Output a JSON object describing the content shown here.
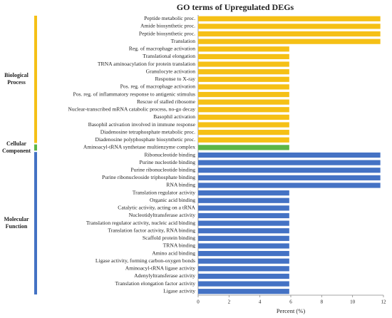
{
  "chart_data": {
    "type": "hbar",
    "title": "GO terms of Upregulated DEGs",
    "x_label": "Percent (%)",
    "xlim": [
      0,
      12
    ],
    "xticks": [
      0,
      2,
      4,
      6,
      8,
      10,
      12
    ],
    "groups": [
      {
        "name": "Biological Process",
        "color": "#f5c016",
        "categories": [
          "Peptide metabolic proc.",
          "Amide biosynthetic proc.",
          "Peptide biosynthetic proc.",
          "Translation",
          "Reg. of macrophage activation",
          "Translational elongation",
          "TRNA aminoacylation for protein translation",
          "Granulocyte activation",
          "Response to X-ray",
          "Pos. reg. of macrophage activation",
          "Pos. reg. of inflammatory response to antigenic stimulus",
          "Rescue of stalled ribosome",
          "Nuclear-transcribed mRNA catabolic process, no-go decay",
          "Basophil activation",
          "Basophil activation involved in immune response",
          "Diadenosine tetraphosphate metabolic proc.",
          "Diadenosine polyphosphate biosynthetic proc."
        ],
        "values": [
          11.8,
          11.8,
          11.8,
          11.8,
          5.9,
          5.9,
          5.9,
          5.9,
          5.9,
          5.9,
          5.9,
          5.9,
          5.9,
          5.9,
          5.9,
          5.9,
          5.9
        ]
      },
      {
        "name": "Cellular Component",
        "color": "#5cb546",
        "categories": [
          "Aminoacyl-tRNA synthetase multienzyme complex"
        ],
        "values": [
          5.9
        ]
      },
      {
        "name": "Molecular Function",
        "color": "#4472c4",
        "categories": [
          "Ribonucleotide binding",
          "Purine nucleotide binding",
          "Purine ribonucleotide binding",
          "Purine ribonucleoside triphosphate binding",
          "RNA binding",
          "Translation regulator activity",
          "Organic acid binding",
          "Catalytic activity, acting on a tRNA",
          "Nucleotidyltransferase activity",
          "Translation regulator activity, nucleic acid binding",
          "Translation factor activity, RNA binding",
          "Scaffold protein binding",
          "TRNA binding",
          "Amino acid binding",
          "Ligase activity, forming carbon-oxygen bonds",
          "Aminoacyl-tRNA ligase activity",
          "Adenylyltransferase activity",
          "Translation elongation factor activity",
          "Ligase activity"
        ],
        "values": [
          11.8,
          11.8,
          11.8,
          11.8,
          11.8,
          5.9,
          5.9,
          5.9,
          5.9,
          5.9,
          5.9,
          5.9,
          5.9,
          5.9,
          5.9,
          5.9,
          5.9,
          5.9,
          5.9
        ]
      }
    ]
  }
}
